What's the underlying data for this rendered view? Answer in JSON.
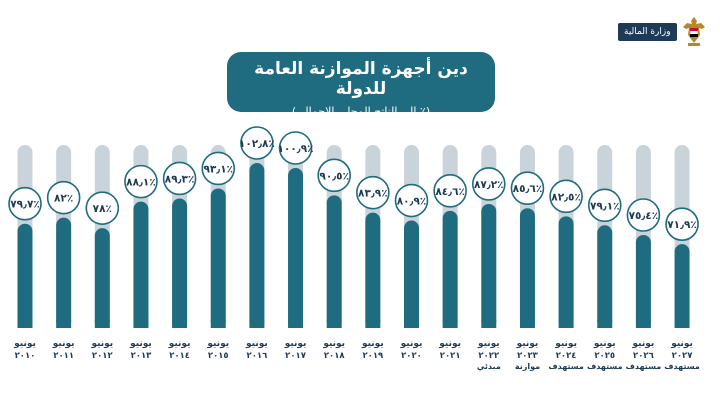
{
  "logo": {
    "ministry_label": "وزارة المالية",
    "emblem_icon": "egypt-eagle-icon"
  },
  "chart_data": {
    "type": "bar",
    "title": "دين أجهزة الموازنة العامة للدولة",
    "subtitle": "(٪ إلى الناتج المحلي الاجمالي)",
    "categories": [
      {
        "line1": "يونيو",
        "line2": "٢٠١٠",
        "line3": ""
      },
      {
        "line1": "يونيو",
        "line2": "٢٠١١",
        "line3": ""
      },
      {
        "line1": "يونيو",
        "line2": "٢٠١٢",
        "line3": ""
      },
      {
        "line1": "يونيو",
        "line2": "٢٠١٣",
        "line3": ""
      },
      {
        "line1": "يونيو",
        "line2": "٢٠١٤",
        "line3": ""
      },
      {
        "line1": "يونيو",
        "line2": "٢٠١٥",
        "line3": ""
      },
      {
        "line1": "يونيو",
        "line2": "٢٠١٦",
        "line3": ""
      },
      {
        "line1": "يونيو",
        "line2": "٢٠١٧",
        "line3": ""
      },
      {
        "line1": "يونيو",
        "line2": "٢٠١٨",
        "line3": ""
      },
      {
        "line1": "يونيو",
        "line2": "٢٠١٩",
        "line3": ""
      },
      {
        "line1": "يونيو",
        "line2": "٢٠٢٠",
        "line3": ""
      },
      {
        "line1": "يونيو",
        "line2": "٢٠٢١",
        "line3": ""
      },
      {
        "line1": "يونيو",
        "line2": "٢٠٢٢",
        "line3": "مبدئي"
      },
      {
        "line1": "يونيو",
        "line2": "٢٠٢٣",
        "line3": "موازنة"
      },
      {
        "line1": "يونيو",
        "line2": "٢٠٢٤",
        "line3": "مستهدف"
      },
      {
        "line1": "يونيو",
        "line2": "٢٠٢٥",
        "line3": "مستهدف"
      },
      {
        "line1": "يونيو",
        "line2": "٢٠٢٦",
        "line3": "مستهدف"
      },
      {
        "line1": "يونيو",
        "line2": "٢٠٢٧",
        "line3": "مستهدف"
      }
    ],
    "values": [
      79.7,
      82,
      78,
      88.1,
      89.3,
      93.1,
      102.8,
      100.9,
      90.5,
      83.9,
      80.9,
      84.6,
      87.2,
      85.6,
      82.5,
      79.1,
      75.4,
      71.9
    ],
    "value_labels": [
      "٧٩٫٧٪",
      "٨٢٪",
      "٧٨٪",
      "٨٨٫١٪",
      "٨٩٫٣٪",
      "٩٣٫١٪",
      "١٠٢٫٨٪",
      "١٠٠٫٩٪",
      "٩٠٫٥٪",
      "٨٣٫٩٪",
      "٨٠٫٩٪",
      "٨٤٫٦٪",
      "٨٧٫٢٪",
      "٨٥٫٦٪",
      "٨٢٫٥٪",
      "٧٩٫١٪",
      "٧٥٫٤٪",
      "٧١٫٩٪"
    ],
    "ylim": [
      40,
      105
    ],
    "grid": false,
    "colors": {
      "bar": "#1f6b80",
      "track": "#c9d3da",
      "bubble_border": "#1f6b80",
      "label_text": "#1e3a56",
      "title_bg": "#1f6b80"
    }
  }
}
